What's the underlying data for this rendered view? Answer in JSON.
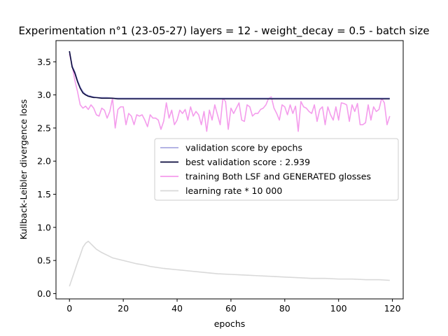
{
  "chart_data": {
    "type": "line",
    "title": "Experimentation n°1 (23-05-27) layers = 12 - weight_decay = 0.5 - batch size",
    "xlabel": "epochs",
    "ylabel": "Kullback-Leibler divergence loss",
    "xlim": [
      -5,
      124
    ],
    "ylim": [
      -0.08,
      3.82
    ],
    "xticks": [
      0,
      20,
      40,
      60,
      80,
      100,
      120
    ],
    "yticks": [
      0.0,
      0.5,
      1.0,
      1.5,
      2.0,
      2.5,
      3.0,
      3.5
    ],
    "xtick_labels": [
      "0",
      "20",
      "40",
      "60",
      "80",
      "100",
      "120"
    ],
    "ytick_labels": [
      "0.0",
      "0.5",
      "1.0",
      "1.5",
      "2.0",
      "2.5",
      "3.0",
      "3.5"
    ],
    "grid": false,
    "legend_position": "center-right",
    "series": [
      {
        "name": "validation score by epochs",
        "color": "#a9a9e0",
        "x": [
          0,
          1,
          2,
          3,
          4,
          5,
          6,
          7,
          8,
          9,
          10,
          12,
          14,
          16,
          18,
          20,
          25,
          30,
          40,
          50,
          60,
          70,
          80,
          90,
          100,
          110,
          119
        ],
        "y": [
          3.66,
          3.44,
          3.35,
          3.22,
          3.12,
          3.05,
          3.01,
          2.99,
          2.98,
          2.97,
          2.96,
          2.96,
          2.96,
          2.95,
          2.95,
          2.95,
          2.95,
          2.95,
          2.95,
          2.95,
          2.95,
          2.95,
          2.95,
          2.95,
          2.95,
          2.95,
          2.95
        ]
      },
      {
        "name": "best validation score : 2.939",
        "color": "#0a0a3c",
        "x": [
          0,
          1,
          2,
          3,
          4,
          5,
          6,
          7,
          8,
          9,
          10,
          12,
          14,
          16,
          18,
          20,
          25,
          30,
          40,
          50,
          60,
          70,
          80,
          90,
          100,
          110,
          119
        ],
        "y": [
          3.66,
          3.42,
          3.33,
          3.2,
          3.1,
          3.03,
          3.0,
          2.98,
          2.97,
          2.96,
          2.96,
          2.95,
          2.95,
          2.95,
          2.94,
          2.94,
          2.94,
          2.94,
          2.94,
          2.94,
          2.94,
          2.94,
          2.94,
          2.94,
          2.94,
          2.94,
          2.94
        ]
      },
      {
        "name": "training Both LSF and GENERATED glosses",
        "color": "#f49cec",
        "x": [
          0,
          1,
          2,
          3,
          4,
          5,
          6,
          7,
          8,
          9,
          10,
          11,
          12,
          13,
          14,
          15,
          16,
          17,
          18,
          19,
          20,
          21,
          22,
          23,
          24,
          25,
          26,
          27,
          28,
          29,
          30,
          31,
          32,
          33,
          34,
          35,
          36,
          37,
          38,
          39,
          40,
          41,
          42,
          43,
          44,
          45,
          46,
          47,
          48,
          49,
          50,
          51,
          52,
          53,
          54,
          55,
          56,
          57,
          58,
          59,
          60,
          61,
          62,
          63,
          64,
          65,
          66,
          67,
          68,
          69,
          70,
          71,
          72,
          73,
          74,
          75,
          76,
          77,
          78,
          79,
          80,
          81,
          82,
          83,
          84,
          85,
          86,
          87,
          88,
          89,
          90,
          91,
          92,
          93,
          94,
          95,
          96,
          97,
          98,
          99,
          100,
          101,
          102,
          103,
          104,
          105,
          106,
          107,
          108,
          109,
          110,
          111,
          112,
          113,
          114,
          115,
          116,
          117,
          118,
          119
        ],
        "y": [
          3.62,
          3.45,
          3.22,
          3.05,
          2.85,
          2.8,
          2.83,
          2.78,
          2.85,
          2.8,
          2.7,
          2.68,
          2.8,
          2.77,
          2.65,
          2.75,
          2.95,
          2.5,
          2.78,
          2.82,
          2.82,
          2.55,
          2.72,
          2.68,
          2.55,
          2.7,
          2.68,
          2.7,
          2.62,
          2.52,
          2.7,
          2.65,
          2.65,
          2.62,
          2.48,
          2.6,
          2.88,
          2.65,
          2.77,
          2.55,
          2.62,
          2.77,
          2.72,
          2.78,
          2.62,
          2.82,
          2.68,
          2.75,
          2.7,
          2.55,
          2.75,
          2.45,
          2.77,
          2.62,
          2.85,
          2.7,
          2.55,
          2.95,
          2.9,
          2.48,
          2.8,
          2.72,
          2.8,
          2.88,
          2.62,
          2.6,
          2.85,
          2.82,
          2.68,
          2.72,
          2.72,
          2.78,
          2.8,
          2.85,
          2.95,
          2.97,
          2.8,
          2.72,
          2.62,
          2.85,
          2.82,
          2.7,
          2.85,
          2.72,
          2.83,
          2.45,
          2.9,
          2.82,
          2.8,
          2.75,
          2.72,
          2.85,
          2.6,
          2.78,
          2.82,
          2.55,
          2.82,
          2.7,
          2.62,
          2.82,
          2.62,
          2.88,
          2.87,
          2.85,
          2.6,
          2.85,
          2.75,
          2.87,
          2.55,
          2.55,
          2.58,
          2.85,
          2.62,
          2.82,
          2.75,
          2.78,
          2.95,
          2.88,
          2.55,
          2.68
        ]
      },
      {
        "name": "learning rate * 10 000",
        "color": "#d9d9d9",
        "x": [
          0,
          1,
          2,
          3,
          4,
          5,
          6,
          7,
          8,
          9,
          10,
          12,
          14,
          16,
          18,
          20,
          22,
          25,
          28,
          30,
          35,
          40,
          45,
          50,
          55,
          60,
          65,
          70,
          75,
          80,
          85,
          90,
          95,
          100,
          105,
          110,
          115,
          119
        ],
        "y": [
          0.11,
          0.23,
          0.35,
          0.47,
          0.58,
          0.7,
          0.76,
          0.79,
          0.75,
          0.71,
          0.67,
          0.62,
          0.58,
          0.54,
          0.52,
          0.5,
          0.48,
          0.45,
          0.43,
          0.41,
          0.38,
          0.36,
          0.34,
          0.32,
          0.3,
          0.29,
          0.28,
          0.27,
          0.26,
          0.25,
          0.24,
          0.23,
          0.23,
          0.22,
          0.22,
          0.21,
          0.21,
          0.2
        ]
      }
    ]
  }
}
